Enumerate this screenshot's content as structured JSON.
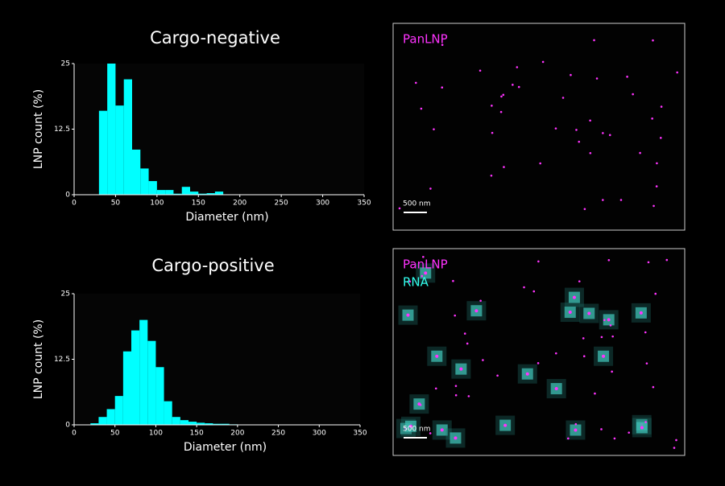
{
  "chart_data": [
    {
      "type": "histogram",
      "title": "Cargo-negative",
      "xlabel": "Diameter (nm)",
      "ylabel": "LNP count (%)",
      "bins": [
        30,
        40,
        50,
        60,
        70,
        80,
        90,
        100,
        110,
        120,
        130,
        140,
        150,
        160,
        170,
        180
      ],
      "values": [
        16,
        25,
        17,
        22,
        8.6,
        5,
        2.6,
        0.9,
        0.9,
        0.2,
        1.5,
        0.6,
        0.2,
        0.3,
        0.6
      ],
      "color": "#00ffff",
      "xlim": [
        0,
        350
      ],
      "xticks": [
        0,
        50,
        100,
        150,
        200,
        250,
        300,
        350
      ],
      "ylim": [
        0,
        25
      ],
      "yticks": [
        0,
        12.5,
        25
      ]
    },
    {
      "type": "histogram",
      "title": "Cargo-positive",
      "xlabel": "Diameter (nm)",
      "ylabel": "LNP count (%)",
      "bins": [
        20,
        30,
        40,
        50,
        60,
        70,
        80,
        90,
        100,
        110,
        120,
        130,
        140,
        150,
        160,
        170,
        180,
        190,
        200
      ],
      "values": [
        0.3,
        1.5,
        3,
        5.5,
        14,
        18,
        20,
        16,
        11,
        4.5,
        1.5,
        0.9,
        0.6,
        0.4,
        0.3,
        0.2,
        0.2,
        0.1
      ],
      "color": "#00ffff",
      "xlim": [
        0,
        350
      ],
      "xticks": [
        0,
        50,
        100,
        150,
        200,
        250,
        300,
        350
      ],
      "ylim": [
        0,
        25
      ],
      "yticks": [
        0,
        12.5,
        25
      ]
    }
  ],
  "panels": [
    {
      "labels": [
        "PanLNP"
      ],
      "scale_bar": "500 nm"
    },
    {
      "labels": [
        "PanLNP",
        "RNA"
      ],
      "scale_bar": "500 nm"
    }
  ]
}
